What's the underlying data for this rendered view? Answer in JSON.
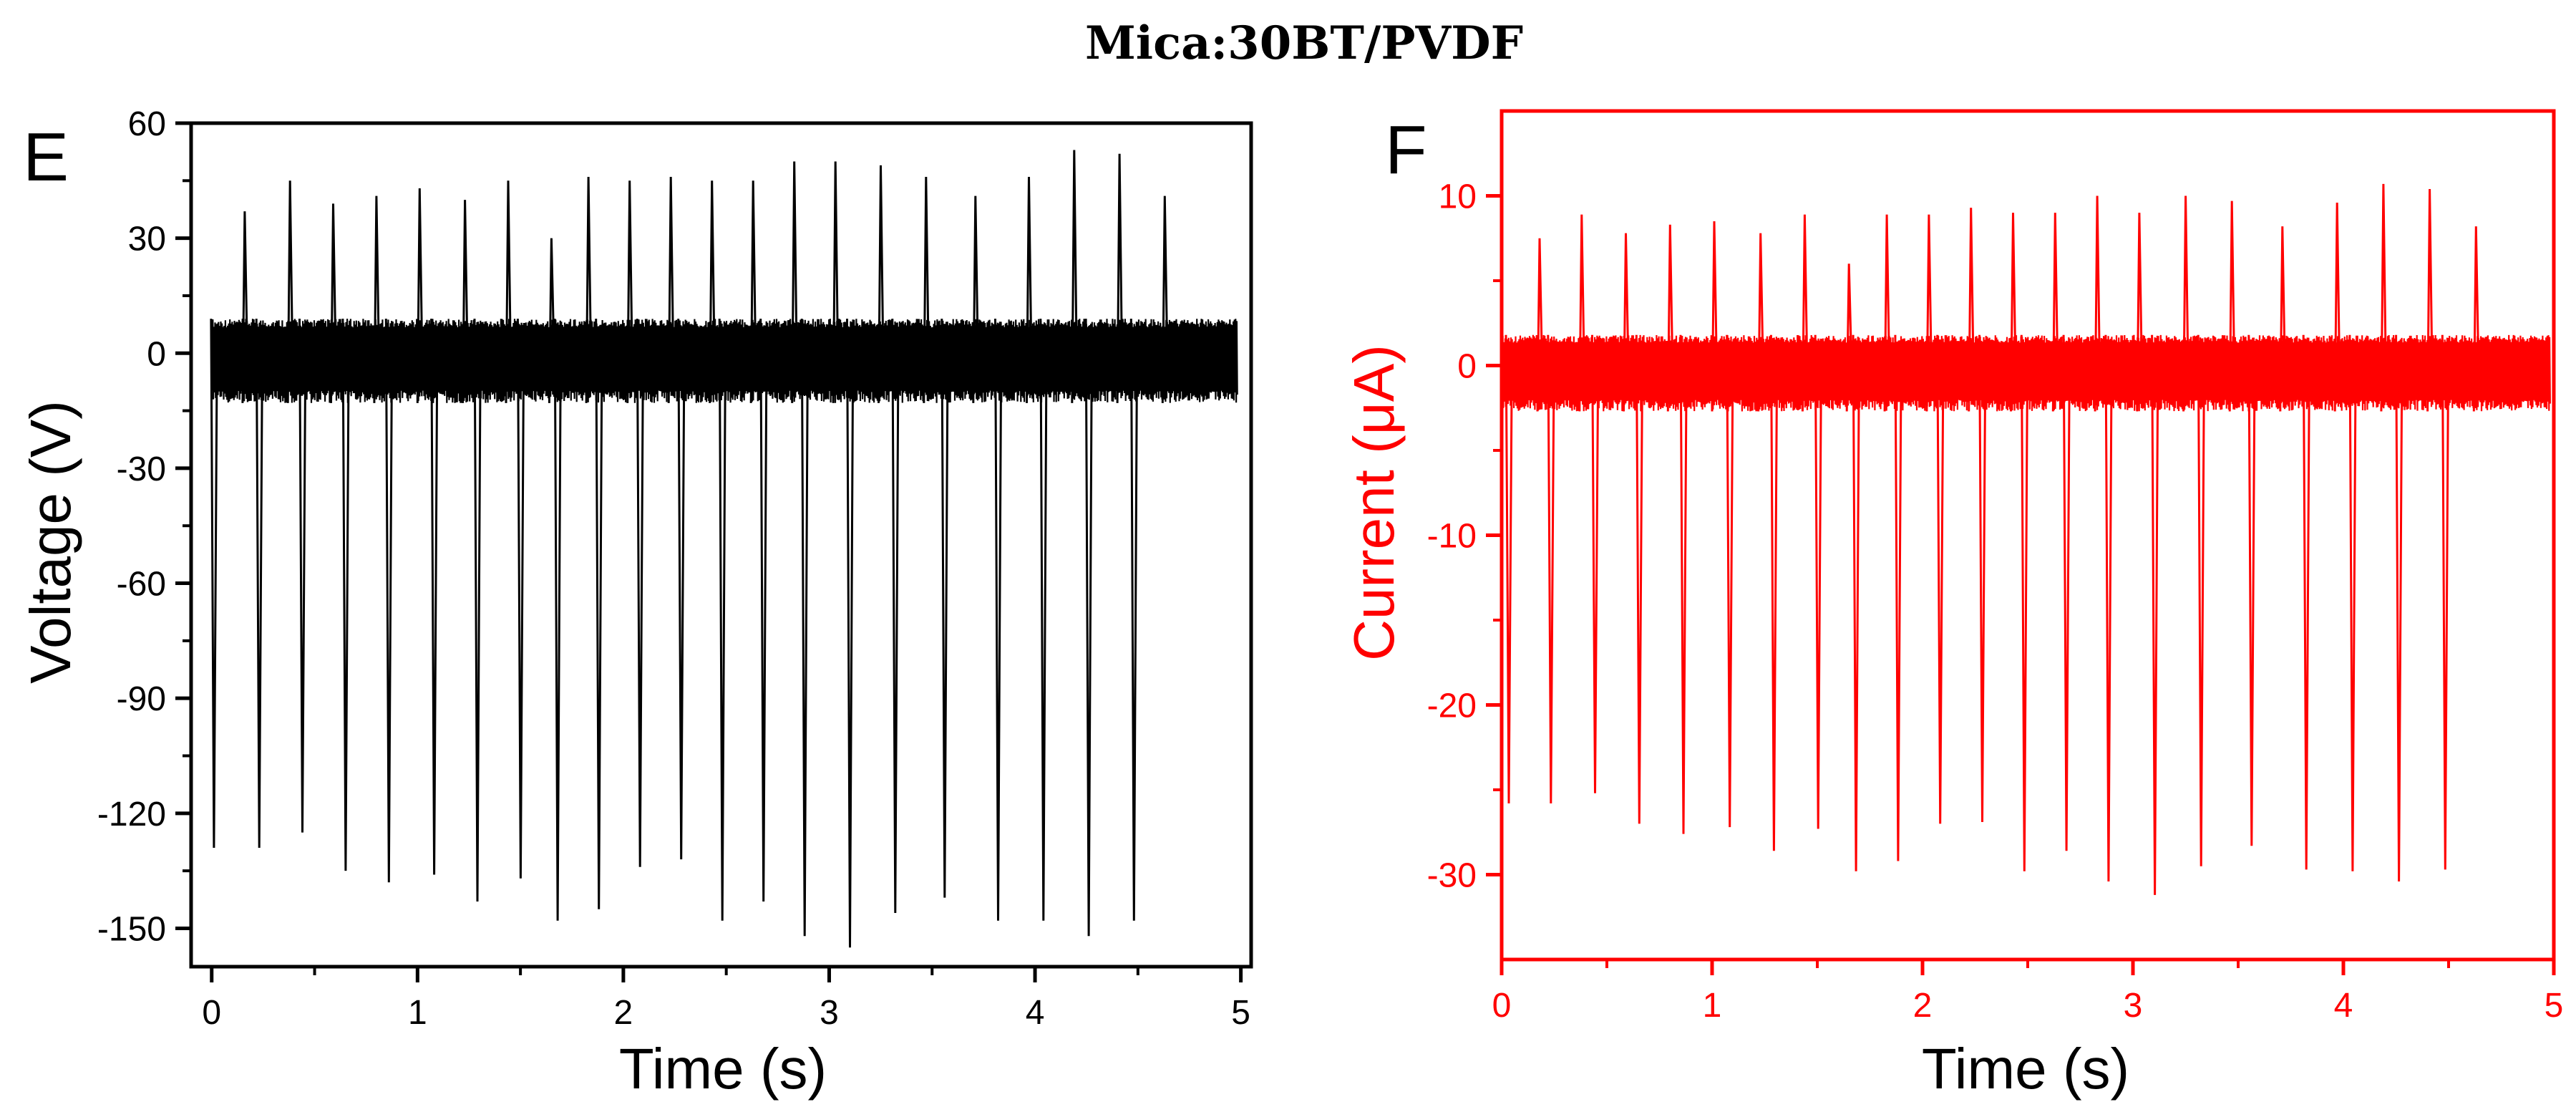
{
  "figure_title": "Mica:30BT/PVDF",
  "chart_data": [
    {
      "panel": "E",
      "type": "line",
      "color": "#000000",
      "xlabel": "Time (s)",
      "ylabel": "Voltage (V)",
      "xlim": [
        -0.1,
        5.05
      ],
      "ylim": [
        -160,
        60
      ],
      "xticks": [
        0,
        1,
        2,
        3,
        4,
        5
      ],
      "yticks": [
        60,
        30,
        0,
        -30,
        -60,
        -90,
        -120,
        -150
      ],
      "baseline_band": [
        -13,
        9
      ],
      "pulse_times": [
        0.15,
        0.37,
        0.58,
        0.79,
        1.0,
        1.22,
        1.43,
        1.64,
        1.82,
        2.02,
        2.22,
        2.42,
        2.62,
        2.82,
        3.02,
        3.24,
        3.46,
        3.7,
        3.96,
        4.18,
        4.4,
        4.62
      ],
      "peak_max": [
        37,
        45,
        39,
        41,
        43,
        40,
        45,
        30,
        46,
        45,
        46,
        45,
        45,
        50,
        50,
        49,
        46,
        41,
        46,
        53,
        52,
        41
      ],
      "peak_min": [
        -129,
        -129,
        -125,
        -135,
        -138,
        -136,
        -143,
        -137,
        -148,
        -145,
        -134,
        -132,
        -148,
        -143,
        -152,
        -155,
        -146,
        -142,
        -148,
        -148,
        -152,
        -148
      ]
    },
    {
      "panel": "F",
      "type": "line",
      "color": "#ff0000",
      "xlabel": "Time (s)",
      "ylabel": "Current (μA)",
      "xlim": [
        0,
        5
      ],
      "ylim": [
        -35,
        15
      ],
      "xticks": [
        0,
        1,
        2,
        3,
        4,
        5
      ],
      "yticks": [
        10,
        0,
        -10,
        -20,
        -30
      ],
      "baseline_band": [
        -2.7,
        1.8
      ],
      "pulse_times": [
        0.17,
        0.37,
        0.58,
        0.79,
        1.0,
        1.22,
        1.43,
        1.64,
        1.82,
        2.02,
        2.22,
        2.42,
        2.62,
        2.82,
        3.02,
        3.24,
        3.46,
        3.7,
        3.96,
        4.18,
        4.4,
        4.62
      ],
      "peak_max": [
        7.5,
        8.9,
        7.8,
        8.3,
        8.5,
        7.8,
        8.9,
        6.0,
        8.9,
        8.9,
        9.3,
        9.0,
        9.0,
        10.0,
        9.0,
        10.0,
        9.7,
        8.2,
        9.6,
        10.7,
        10.4,
        8.2
      ],
      "peak_min": [
        -25.8,
        -25.8,
        -25.2,
        -27.0,
        -27.6,
        -27.2,
        -28.6,
        -27.3,
        -29.8,
        -29.2,
        -27.0,
        -26.9,
        -29.8,
        -28.6,
        -30.4,
        -31.2,
        -29.5,
        -28.3,
        -29.7,
        -29.8,
        -30.4,
        -29.7
      ]
    }
  ]
}
